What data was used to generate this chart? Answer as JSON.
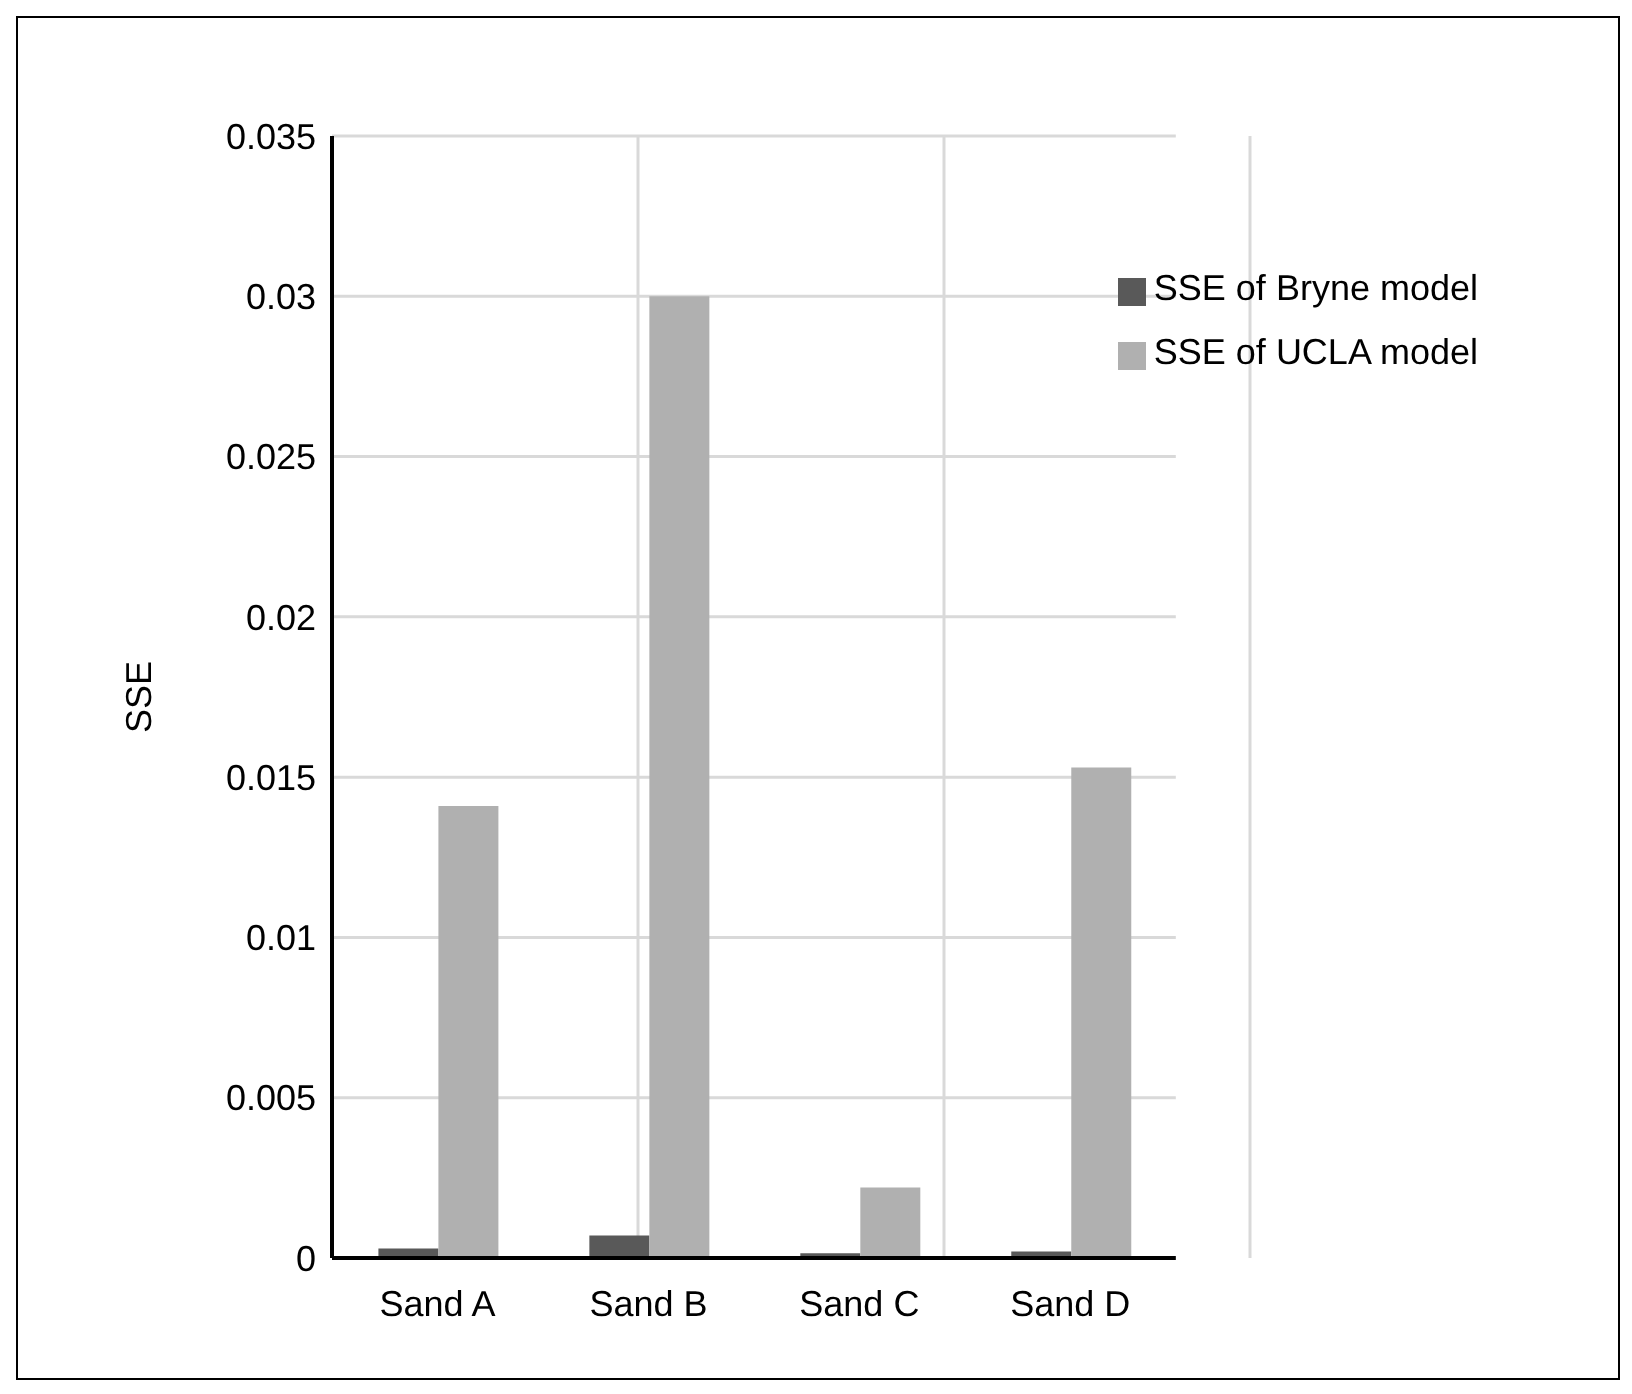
{
  "chart_data": {
    "type": "bar",
    "ylabel": "SSE",
    "categories": [
      "Sand A",
      "Sand B",
      "Sand C",
      "Sand D"
    ],
    "series": [
      {
        "name": "SSE of Bryne model",
        "color": "#595959",
        "values": [
          0.0003,
          0.0007,
          0.00015,
          0.0002
        ]
      },
      {
        "name": "SSE of UCLA model",
        "color": "#b0b0b0",
        "values": [
          0.0141,
          0.03,
          0.0022,
          0.0153
        ]
      }
    ],
    "ylim": [
      0,
      0.035
    ],
    "yticks": [
      0,
      0.005,
      0.01,
      0.015,
      0.02,
      0.025,
      0.03,
      0.035
    ],
    "grid": true,
    "legend": "top right"
  }
}
